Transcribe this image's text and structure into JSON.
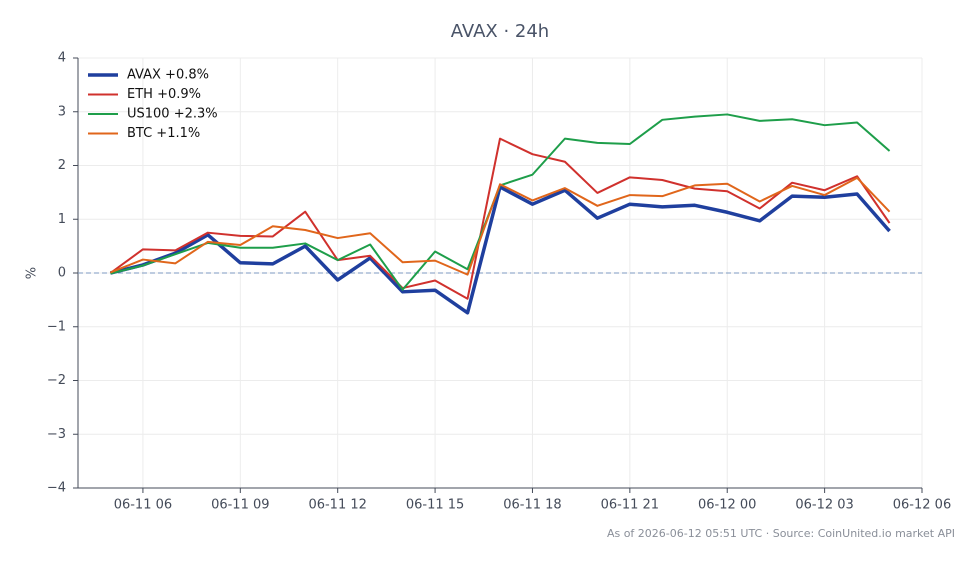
{
  "chart_data": {
    "type": "line",
    "title": "AVAX · 24h",
    "ylabel": "%",
    "footer": "As of 2026-06-12 05:51 UTC · Source: CoinUnited.io market API",
    "x": [
      "06-11 05",
      "06-11 06",
      "06-11 07",
      "06-11 08",
      "06-11 09",
      "06-11 10",
      "06-11 11",
      "06-11 12",
      "06-11 13",
      "06-11 14",
      "06-11 15",
      "06-11 16",
      "06-11 17",
      "06-11 18",
      "06-11 19",
      "06-11 20",
      "06-11 21",
      "06-11 22",
      "06-11 23",
      "06-12 00",
      "06-12 01",
      "06-12 02",
      "06-12 03",
      "06-12 04",
      "06-12 05"
    ],
    "xlim": [
      "06-11 04",
      "06-12 06"
    ],
    "xticks": [
      "06-11 06",
      "06-11 09",
      "06-11 12",
      "06-11 15",
      "06-11 18",
      "06-11 21",
      "06-12 00",
      "06-12 03",
      "06-12 06"
    ],
    "ylim": [
      -4,
      4
    ],
    "yticks": [
      {
        "value": -4,
        "label": "−4"
      },
      {
        "value": -3,
        "label": "−3"
      },
      {
        "value": -2,
        "label": "−2"
      },
      {
        "value": -1,
        "label": "−1"
      },
      0,
      1,
      2,
      3,
      4
    ],
    "grid": true,
    "legend": "upper left",
    "zero_line": true,
    "series": [
      {
        "name": "AVAX +0.8%",
        "color": "#1f3f9e",
        "width": 3.5,
        "values": [
          0,
          0.15,
          0.37,
          0.71,
          0.19,
          0.17,
          0.5,
          -0.13,
          0.28,
          -0.35,
          -0.32,
          -0.74,
          1.6,
          1.28,
          1.54,
          1.02,
          1.28,
          1.23,
          1.26,
          1.13,
          0.97,
          1.43,
          1.41,
          1.47,
          0.78
        ]
      },
      {
        "name": "ETH +0.9%",
        "color": "#d0312d",
        "width": 2,
        "values": [
          0,
          0.44,
          0.42,
          0.75,
          0.69,
          0.68,
          1.14,
          0.24,
          0.32,
          -0.28,
          -0.14,
          -0.48,
          2.5,
          2.21,
          2.07,
          1.49,
          1.78,
          1.73,
          1.57,
          1.52,
          1.2,
          1.68,
          1.54,
          1.8,
          0.93
        ]
      },
      {
        "name": "US100 +2.3%",
        "color": "#1e9e4a",
        "width": 2,
        "values": [
          -0.01,
          0.14,
          0.35,
          0.56,
          0.47,
          0.47,
          0.55,
          0.24,
          0.53,
          -0.31,
          0.4,
          0.07,
          1.63,
          1.83,
          2.5,
          2.42,
          2.4,
          2.85,
          2.91,
          2.95,
          2.83,
          2.86,
          2.75,
          2.8,
          2.27
        ]
      },
      {
        "name": "BTC +1.1%",
        "color": "#e0661b",
        "width": 2,
        "values": [
          0.01,
          0.25,
          0.18,
          0.58,
          0.52,
          0.87,
          0.8,
          0.65,
          0.74,
          0.2,
          0.23,
          -0.03,
          1.65,
          1.35,
          1.58,
          1.25,
          1.45,
          1.43,
          1.63,
          1.66,
          1.33,
          1.62,
          1.45,
          1.77,
          1.14
        ]
      }
    ]
  }
}
